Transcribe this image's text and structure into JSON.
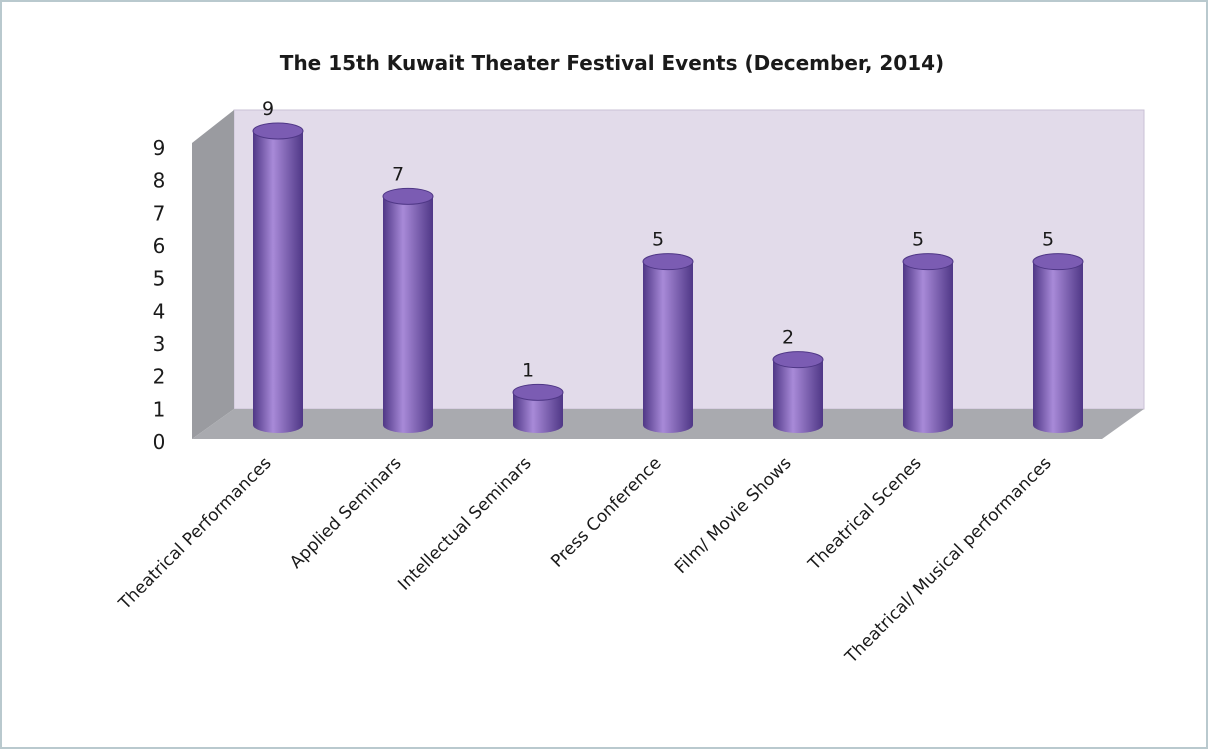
{
  "chart_data": {
    "type": "bar",
    "title": "The 15th Kuwait Theater Festival Events (December, 2014)",
    "categories": [
      "Theatrical Performances",
      "Applied Seminars",
      "Intellectual Seminars",
      "Press Conference",
      "Film/ Movie Shows",
      "Theatrical Scenes",
      "Theatrical/ Musical performances"
    ],
    "values": [
      9,
      7,
      1,
      5,
      2,
      5,
      5
    ],
    "data_labels": [
      "9",
      "7",
      "1",
      "5",
      "2",
      "5",
      "5"
    ],
    "y_ticks": [
      "0",
      "1",
      "2",
      "3",
      "4",
      "5",
      "6",
      "7",
      "8",
      "9"
    ],
    "ylim": [
      0,
      9
    ],
    "bar_shape": "cylinder",
    "style": "3d",
    "legend": "none",
    "grid": false,
    "colors": {
      "bar": "#7b5cb3",
      "bar_dark": "#4f3786",
      "bar_light": "#a88ad8",
      "back_wall": "#e2dbea",
      "side_wall": "#9a9ba0",
      "floor": "#a9aaaf",
      "frame_border": "#b9c9ce"
    }
  }
}
